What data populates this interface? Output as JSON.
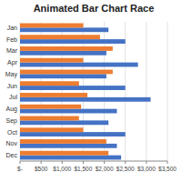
{
  "chart_data": {
    "type": "bar",
    "orientation": "horizontal",
    "title": "Animated Bar Chart Race",
    "categories": [
      "Jan",
      "Feb",
      "Mar",
      "Apr",
      "May",
      "Jun",
      "Jul",
      "Aug",
      "Sep",
      "Oct",
      "Nov",
      "Dec"
    ],
    "series": [
      {
        "color": "#4472C4",
        "values": [
          2100,
          2500,
          2050,
          2800,
          2050,
          2500,
          3100,
          2300,
          2100,
          2500,
          2300,
          2400
        ]
      },
      {
        "color": "#ED7D31",
        "values": [
          1500,
          1900,
          2200,
          1500,
          2200,
          1400,
          1600,
          1450,
          1400,
          1500,
          2050,
          2100
        ]
      }
    ],
    "xlim": [
      0,
      3500
    ],
    "xticks": [
      {
        "value": 0,
        "label": "$-"
      },
      {
        "value": 500,
        "label": "$500"
      },
      {
        "value": 1000,
        "label": "$1,000"
      },
      {
        "value": 1500,
        "label": "$1,500"
      },
      {
        "value": 2000,
        "label": "$2,000"
      },
      {
        "value": 2500,
        "label": "$2,500"
      },
      {
        "value": 3000,
        "label": "$3,000"
      },
      {
        "value": 3500,
        "label": "$3,500"
      }
    ],
    "grid": true
  }
}
